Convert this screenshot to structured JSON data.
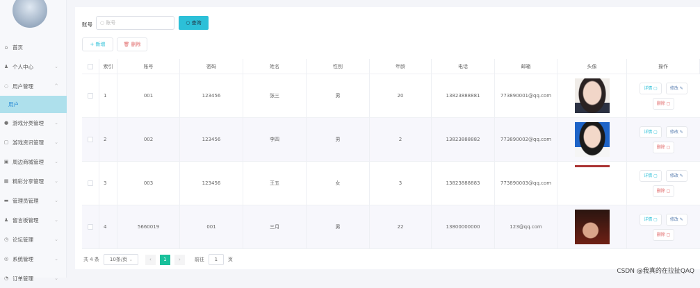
{
  "sidebar": {
    "items": [
      {
        "label": "首页",
        "icon": "home-icon",
        "chev": false
      },
      {
        "label": "个人中心",
        "icon": "user-icon",
        "chev": true
      },
      {
        "label": "用户管理",
        "icon": "power-icon",
        "chev": true,
        "open": true
      },
      {
        "label": "用户",
        "sub": true
      },
      {
        "label": "游戏分类管理",
        "icon": "bulb-icon",
        "chev": true
      },
      {
        "label": "游戏资讯管理",
        "icon": "window-icon",
        "chev": true
      },
      {
        "label": "周边商城管理",
        "icon": "image-icon",
        "chev": true
      },
      {
        "label": "精彩分享管理",
        "icon": "grid-icon",
        "chev": true
      },
      {
        "label": "管理员管理",
        "icon": "message-icon",
        "chev": true
      },
      {
        "label": "留言板管理",
        "icon": "user-icon",
        "chev": true
      },
      {
        "label": "论坛管理",
        "icon": "clock-icon",
        "chev": true
      },
      {
        "label": "系统管理",
        "icon": "settings-icon",
        "chev": true
      },
      {
        "label": "订单管理",
        "icon": "order-icon",
        "chev": true
      }
    ]
  },
  "search": {
    "label": "账号",
    "placeholder": "账号",
    "button": "查询"
  },
  "actions": {
    "add": "新增",
    "delete": "删除"
  },
  "table": {
    "headers": [
      "",
      "索引",
      "账号",
      "密码",
      "姓名",
      "性别",
      "年龄",
      "电话",
      "邮箱",
      "头像",
      "操作"
    ],
    "rows": [
      {
        "index": "1",
        "account": "001",
        "password": "123456",
        "name": "张三",
        "gender": "男",
        "age": "20",
        "phone": "13823888881",
        "email": "773890001@qq.com"
      },
      {
        "index": "2",
        "account": "002",
        "password": "123456",
        "name": "李四",
        "gender": "男",
        "age": "2",
        "phone": "13823888882",
        "email": "773890002@qq.com"
      },
      {
        "index": "3",
        "account": "003",
        "password": "123456",
        "name": "王五",
        "gender": "女",
        "age": "3",
        "phone": "13823888883",
        "email": "773890003@qq.com"
      },
      {
        "index": "4",
        "account": "5660019",
        "password": "001",
        "name": "三月",
        "gender": "男",
        "age": "22",
        "phone": "13800000000",
        "email": "123@qq.com"
      }
    ],
    "ops": {
      "detail": "详情",
      "edit": "修改",
      "delete": "删除"
    }
  },
  "pager": {
    "total": "共 4 条",
    "size": "10条/页",
    "current": "1",
    "goto": "前往",
    "page_input": "1",
    "page_unit": "页"
  },
  "watermark": "CSDN @我真的在拉扯QAQ"
}
